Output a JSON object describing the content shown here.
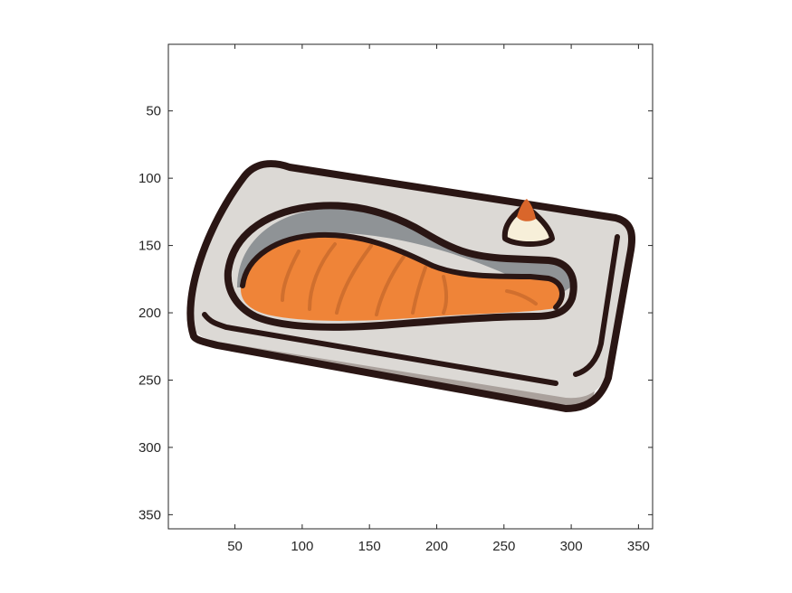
{
  "figure": {
    "content": "grilled salmon fillet on a rectangular plate with a small garnish",
    "colors": {
      "outline": "#2a1614",
      "plate": "#dcd9d5",
      "plate_shadow": "#aaa19c",
      "salmon": "#ef8438",
      "salmon_lines": "#c96a2c",
      "salmon_skin": "#8f9396",
      "garnish_top": "#d9662b",
      "garnish": "#f7efd9",
      "frame": "#262626"
    }
  },
  "axes": {
    "xlim": [
      0.5,
      360.5
    ],
    "ylim": [
      0.5,
      360.5
    ],
    "y_direction": "reverse",
    "xticks": [
      {
        "value": 50,
        "label": "50"
      },
      {
        "value": 100,
        "label": "100"
      },
      {
        "value": 150,
        "label": "150"
      },
      {
        "value": 200,
        "label": "200"
      },
      {
        "value": 250,
        "label": "250"
      },
      {
        "value": 300,
        "label": "300"
      },
      {
        "value": 350,
        "label": "350"
      }
    ],
    "yticks": [
      {
        "value": 50,
        "label": "50"
      },
      {
        "value": 100,
        "label": "100"
      },
      {
        "value": 150,
        "label": "150"
      },
      {
        "value": 200,
        "label": "200"
      },
      {
        "value": 250,
        "label": "250"
      },
      {
        "value": 300,
        "label": "300"
      },
      {
        "value": 350,
        "label": "350"
      }
    ]
  }
}
